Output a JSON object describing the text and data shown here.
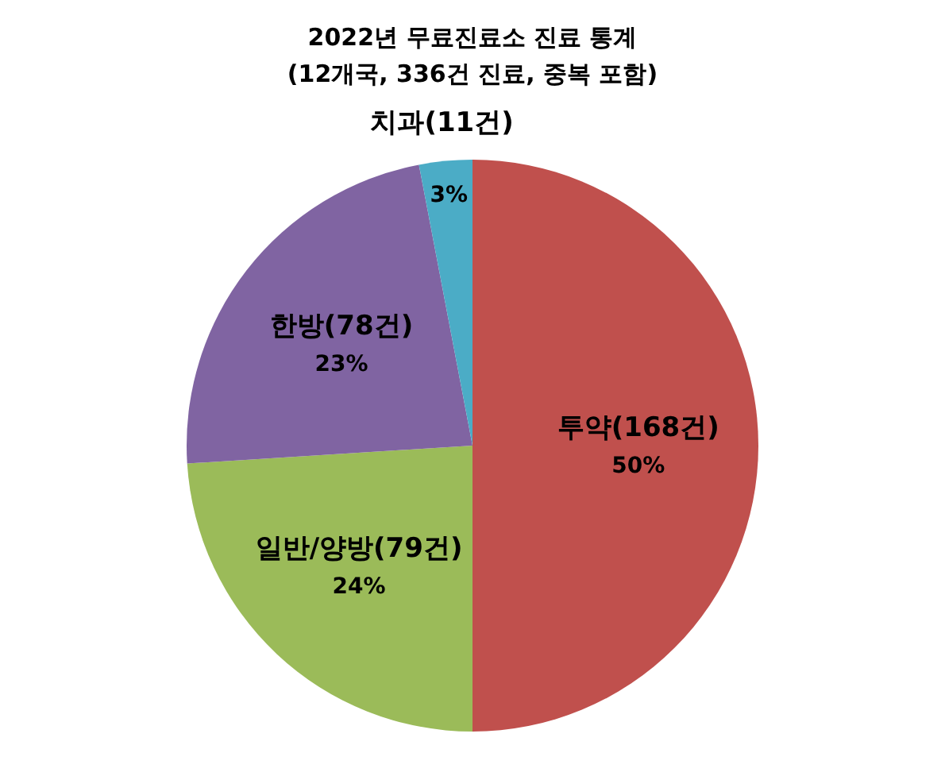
{
  "chart_data": {
    "type": "pie",
    "title": "2022년 무료진료소 진료 통계",
    "subtitle": "(12개국, 336건 진료, 중복 포함)",
    "categories": [
      "투약(168건)",
      "일반/양방(79건)",
      "한방(78건)",
      "치과(11건)"
    ],
    "values": [
      50,
      24,
      23,
      3
    ],
    "value_labels": [
      "50%",
      "24%",
      "23%",
      "3%"
    ],
    "colors": [
      "#c0504d",
      "#9bbb59",
      "#8064a2",
      "#4bacc6"
    ]
  }
}
